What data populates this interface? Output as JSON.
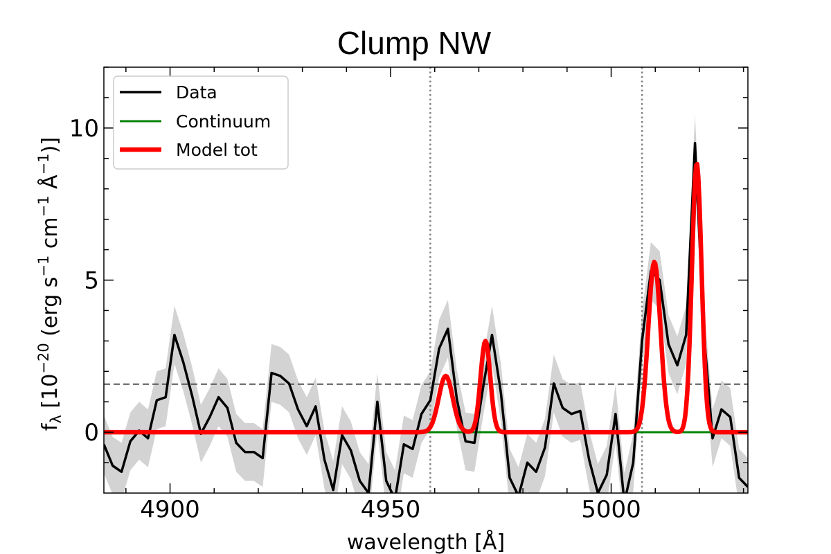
{
  "chart_data": {
    "type": "line",
    "title": "Clump NW",
    "xlabel": "wavelength [Å]",
    "ylabel": "f_λ [10^−20 (erg s^−1 cm^−1 Å^−1)]",
    "ylabel_parts": {
      "f": "f",
      "lambda": "λ",
      "open": " [10",
      "exp1": "−20",
      "unit_erg": " (erg s",
      "exp2": "−1",
      "unit_cm": " cm",
      "exp3": "−1",
      "unit_ang": " Å",
      "exp4": "−1",
      "close": ")]"
    },
    "xlim": [
      4885,
      5031
    ],
    "ylim": [
      -2.0,
      12.0
    ],
    "xticks": [
      4900,
      4950,
      5000
    ],
    "xtick_labels": [
      "4900",
      "4950",
      "5000"
    ],
    "yticks": [
      0,
      5,
      10
    ],
    "ytick_labels": [
      "0",
      "5",
      "10"
    ],
    "legend": {
      "location": "upper-left",
      "entries": [
        {
          "label": "Data",
          "color": "#000000"
        },
        {
          "label": "Continuum",
          "color": "#008000"
        },
        {
          "label": "Model tot",
          "color": "#ff0000"
        }
      ]
    },
    "reference_lines": {
      "vertical_dotted_x": [
        4959,
        5007
      ],
      "horizontal_dashed_y": 1.58
    },
    "series": [
      {
        "name": "Data",
        "color": "#000000",
        "x": [
          4885.0,
          4887.0,
          4889.0,
          4891.0,
          4893.0,
          4895.0,
          4897.0,
          4899.0,
          4901.0,
          4903.0,
          4905.0,
          4907.0,
          4909.0,
          4911.0,
          4913.0,
          4915.0,
          4917.0,
          4919.0,
          4921.0,
          4923.0,
          4925.0,
          4927.0,
          4929.0,
          4931.0,
          4933.0,
          4935.0,
          4937.0,
          4939.0,
          4941.0,
          4943.0,
          4945.0,
          4947.0,
          4949.0,
          4951.0,
          4953.0,
          4955.0,
          4957.0,
          4959.0,
          4961.0,
          4963.0,
          4965.0,
          4967.0,
          4969.0,
          4971.0,
          4973.0,
          4975.0,
          4977.0,
          4979.0,
          4981.0,
          4983.0,
          4985.0,
          4987.0,
          4989.0,
          4991.0,
          4993.0,
          4995.0,
          4997.0,
          4999.0,
          5001.0,
          5003.0,
          5005.0,
          5007.0,
          5009.0,
          5011.0,
          5013.0,
          5015.0,
          5017.0,
          5019.0,
          5021.0,
          5023.0,
          5025.0,
          5027.0,
          5029.0,
          5031.0
        ],
        "y": [
          -0.4,
          -1.1,
          -1.3,
          -0.3,
          0.05,
          -0.2,
          1.05,
          1.15,
          3.2,
          2.3,
          1.2,
          -0.05,
          0.5,
          1.15,
          0.8,
          -0.35,
          -0.65,
          -0.65,
          -0.85,
          1.95,
          1.85,
          1.6,
          0.75,
          0.2,
          0.85,
          -0.9,
          -1.9,
          -0.1,
          -0.6,
          -1.6,
          -2.0,
          1.0,
          -1.6,
          -2.2,
          -0.4,
          -0.55,
          0.6,
          1.05,
          2.75,
          3.4,
          1.1,
          -0.3,
          -0.35,
          1.5,
          3.2,
          1.3,
          -1.5,
          -2.1,
          -1.0,
          -1.3,
          -0.5,
          1.6,
          0.8,
          0.6,
          0.7,
          -0.9,
          -2.0,
          -1.4,
          0.6,
          -2.3,
          -1.0,
          3.0,
          5.3,
          5.0,
          2.9,
          2.2,
          3.2,
          9.5,
          3.3,
          -0.2,
          0.75,
          0.5,
          -1.5,
          -1.8
        ]
      },
      {
        "name": "Data uncertainty",
        "color": "#d3d3d3",
        "sigma": 0.95
      },
      {
        "name": "Continuum",
        "color": "#008000",
        "x": [
          4885,
          5031
        ],
        "y": [
          0,
          0
        ]
      },
      {
        "name": "Model tot",
        "color": "#ff0000",
        "components": [
          {
            "center": 4962.5,
            "amplitude": 1.85,
            "sigma": 1.6
          },
          {
            "center": 4971.5,
            "amplitude": 3.0,
            "sigma": 1.1
          },
          {
            "center": 5009.8,
            "amplitude": 5.6,
            "sigma": 1.4
          },
          {
            "center": 5019.4,
            "amplitude": 8.85,
            "sigma": 1.1
          }
        ]
      }
    ]
  }
}
